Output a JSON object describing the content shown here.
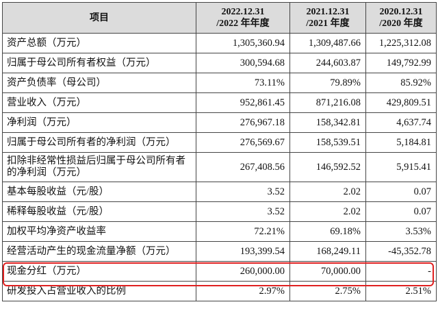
{
  "table": {
    "headers": [
      {
        "line1": "项目",
        "line2": ""
      },
      {
        "line1": "2022.12.31",
        "line2": "/2022 年年度"
      },
      {
        "line1": "2021.12.31",
        "line2": "/2021 年度"
      },
      {
        "line1": "2020.12.31",
        "line2": "/2020 年度"
      }
    ],
    "rows": [
      {
        "label": "资产总额（万元）",
        "values": [
          "1,305,360.94",
          "1,309,487.66",
          "1,225,312.08"
        ]
      },
      {
        "label": "归属于母公司所有者权益（万元）",
        "values": [
          "300,594.68",
          "244,603.87",
          "149,792.99"
        ]
      },
      {
        "label": "资产负债率（母公司）",
        "values": [
          "73.11%",
          "79.89%",
          "85.92%"
        ]
      },
      {
        "label": "营业收入（万元）",
        "values": [
          "952,861.45",
          "871,216.08",
          "429,809.51"
        ]
      },
      {
        "label": "净利润（万元）",
        "values": [
          "276,967.18",
          "158,342.81",
          "4,637.74"
        ]
      },
      {
        "label": "归属于母公司所有者的净利润（万元）",
        "values": [
          "276,569.67",
          "158,539.51",
          "5,184.81"
        ]
      },
      {
        "label": "扣除非经常性损益后归属于母公司所有者的净利润（万元）",
        "values": [
          "267,408.56",
          "146,592.52",
          "5,915.41"
        ]
      },
      {
        "label": "基本每股收益（元/股）",
        "values": [
          "3.52",
          "2.02",
          "0.07"
        ]
      },
      {
        "label": "稀释每股收益（元/股）",
        "values": [
          "3.52",
          "2.02",
          "0.07"
        ]
      },
      {
        "label": "加权平均净资产收益率",
        "values": [
          "72.21%",
          "69.18%",
          "3.53%"
        ]
      },
      {
        "label": "经营活动产生的现金流量净额（万元）",
        "values": [
          "193,399.54",
          "168,249.11",
          "-45,352.78"
        ]
      },
      {
        "label": "现金分红（万元）",
        "values": [
          "260,000.00",
          "70,000.00",
          "-"
        ]
      },
      {
        "label": "研发投入占营业收入的比例",
        "values": [
          "2.97%",
          "2.75%",
          "2.51%"
        ]
      }
    ]
  },
  "highlight": {
    "color": "#e02020",
    "row_label": "现金分红（万元）"
  }
}
